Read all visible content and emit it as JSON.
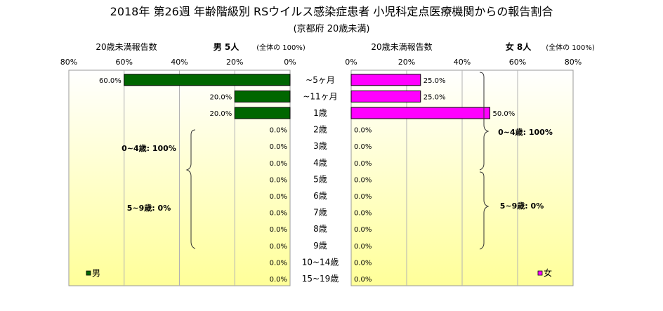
{
  "title": "2018年 第26週 年齢階級別 RSウイルス感染症患者 小児科定点医療機関からの報告割合",
  "subtitle": "(京都府 20歳未満)",
  "colors": {
    "male": "#006600",
    "female": "#ff00ff",
    "plot_bg_top": "#ffffff",
    "plot_bg_bottom": "#ffff99"
  },
  "chart_data": {
    "type": "bar",
    "orientation": "horizontal",
    "layout": "population-pyramid",
    "categories": [
      "~5ヶ月",
      "~11ヶ月",
      "1歳",
      "2歳",
      "3歳",
      "4歳",
      "5歳",
      "6歳",
      "7歳",
      "8歳",
      "9歳",
      "10~14歳",
      "15~19歳"
    ],
    "xlim": [
      0,
      80
    ],
    "ticks": [
      "80%",
      "60%",
      "40%",
      "20%",
      "0%"
    ],
    "ticks_right": [
      "0%",
      "20%",
      "40%",
      "60%",
      "80%"
    ],
    "grid": true,
    "series": [
      {
        "name": "男",
        "header_label": "20歳未満報告数",
        "header_count": "男 5人",
        "header_note": "(全体の 100%)",
        "values": [
          60.0,
          20.0,
          20.0,
          0.0,
          0.0,
          0.0,
          0.0,
          0.0,
          0.0,
          0.0,
          0.0,
          0.0,
          0.0
        ],
        "labels": [
          "60.0%",
          "20.0%",
          "20.0%",
          "0.0%",
          "0.0%",
          "0.0%",
          "0.0%",
          "0.0%",
          "0.0%",
          "0.0%",
          "0.0%",
          "0.0%",
          "0.0%"
        ],
        "groups": [
          "0~4歳: 100%",
          "5~9歳: 0%"
        ],
        "legend": "男"
      },
      {
        "name": "女",
        "header_label": "20歳未満報告数",
        "header_count": "女 8人",
        "header_note": "(全体の 100%)",
        "values": [
          25.0,
          25.0,
          50.0,
          0.0,
          0.0,
          0.0,
          0.0,
          0.0,
          0.0,
          0.0,
          0.0,
          0.0,
          0.0
        ],
        "labels": [
          "25.0%",
          "25.0%",
          "50.0%",
          "0.0%",
          "0.0%",
          "0.0%",
          "0.0%",
          "0.0%",
          "0.0%",
          "0.0%",
          "0.0%",
          "0.0%",
          "0.0%"
        ],
        "groups": [
          "0~4歳: 100%",
          "5~9歳: 0%"
        ],
        "legend": "女"
      }
    ]
  }
}
